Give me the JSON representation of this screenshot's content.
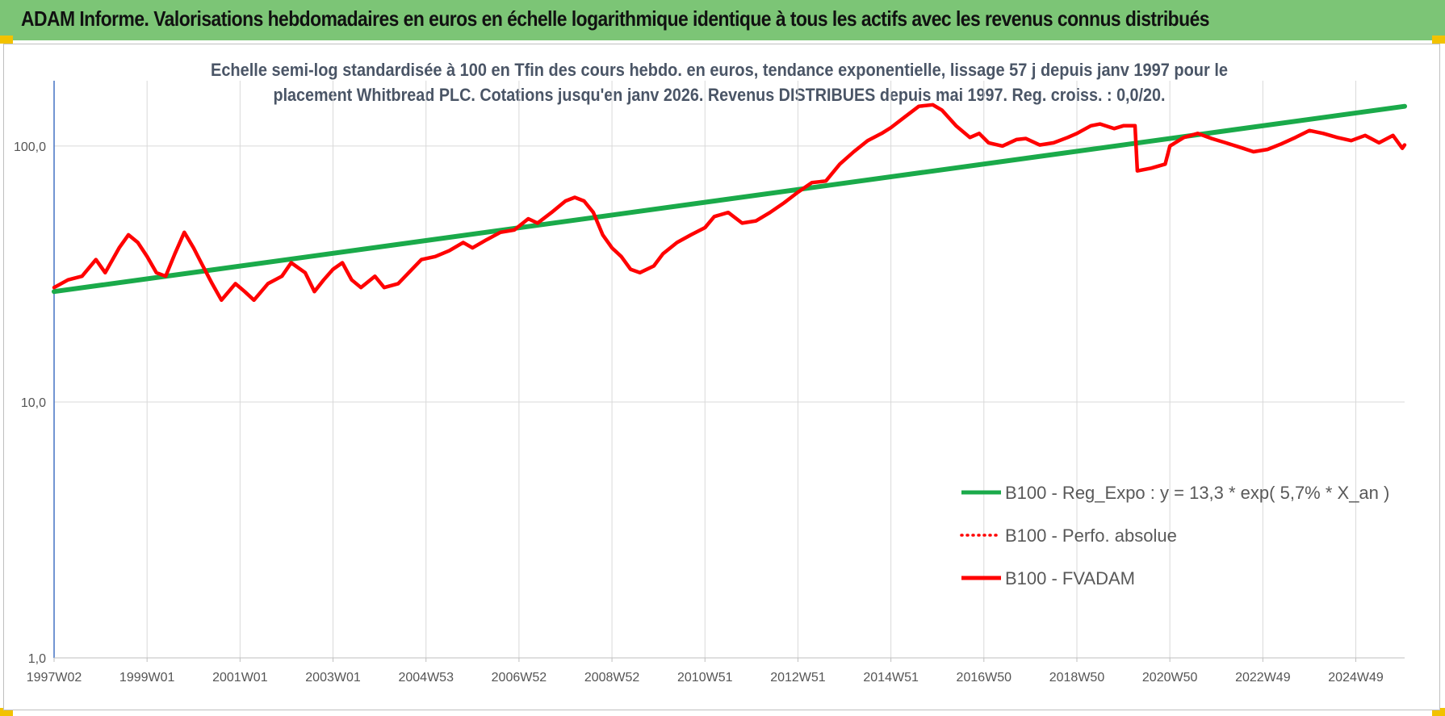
{
  "header": {
    "title": "ADAM Informe. Valorisations hebdomadaires en euros en échelle logarithmique identique à tous les actifs avec les revenus connus distribués"
  },
  "colors": {
    "header_bg": "#7cc576",
    "corner_accent": "#f2c200",
    "regression": "#1aaa4a",
    "fvadam": "#ff0000",
    "perfo": "#ff0000"
  },
  "chart_data": {
    "type": "line",
    "subtitle": [
      "Echelle semi-log standardisée à 100 en Tfin des cours hebdo. en euros, tendance exponentielle, lissage 57 j depuis janv 1997 pour le",
      "placement Whitbread PLC. Cotations jusqu'en janv 2026. Revenus DISTRIBUES depuis mai 1997. Reg. croiss. : 0,0/20."
    ],
    "y_scale": "log",
    "ylim": [
      1,
      180
    ],
    "y_ticks": [
      {
        "value": 1,
        "label": "1,0"
      },
      {
        "value": 10,
        "label": "10,0"
      },
      {
        "value": 100,
        "label": "100,0"
      }
    ],
    "xlim": [
      1997.0,
      2026.05
    ],
    "x_ticks": [
      {
        "value": 1997.0,
        "label": "1997W02"
      },
      {
        "value": 1999.0,
        "label": "1999W01"
      },
      {
        "value": 2001.0,
        "label": "2001W01"
      },
      {
        "value": 2003.0,
        "label": "2003W01"
      },
      {
        "value": 2005.0,
        "label": "2004W53"
      },
      {
        "value": 2007.0,
        "label": "2006W52"
      },
      {
        "value": 2009.0,
        "label": "2008W52"
      },
      {
        "value": 2011.0,
        "label": "2010W51"
      },
      {
        "value": 2013.0,
        "label": "2012W51"
      },
      {
        "value": 2015.0,
        "label": "2014W51"
      },
      {
        "value": 2017.0,
        "label": "2016W50"
      },
      {
        "value": 2019.0,
        "label": "2018W50"
      },
      {
        "value": 2021.0,
        "label": "2020W50"
      },
      {
        "value": 2023.0,
        "label": "2022W49"
      },
      {
        "value": 2025.0,
        "label": "2024W49"
      }
    ],
    "grid": true,
    "legend_position": "bottom-right",
    "series": [
      {
        "name": "B100 - Reg_Expo : y = 13,3 * exp( 5,7% *  X_an )",
        "style": "solid",
        "points": [
          [
            1997.0,
            27.0
          ],
          [
            2026.05,
            143.0
          ]
        ]
      },
      {
        "name": "B100 - Perfo. absolue",
        "style": "dotted",
        "points": []
      },
      {
        "name": "B100 - FVADAM",
        "style": "solid",
        "points": [
          [
            1997.0,
            28
          ],
          [
            1997.3,
            30
          ],
          [
            1997.6,
            31
          ],
          [
            1997.9,
            36
          ],
          [
            1998.1,
            32
          ],
          [
            1998.4,
            40
          ],
          [
            1998.6,
            45
          ],
          [
            1998.8,
            42
          ],
          [
            1999.0,
            37
          ],
          [
            1999.2,
            32
          ],
          [
            1999.4,
            31
          ],
          [
            1999.6,
            38
          ],
          [
            1999.8,
            46
          ],
          [
            2000.0,
            40
          ],
          [
            2000.2,
            34
          ],
          [
            2000.4,
            29
          ],
          [
            2000.6,
            25
          ],
          [
            2000.9,
            29
          ],
          [
            2001.1,
            27
          ],
          [
            2001.3,
            25
          ],
          [
            2001.6,
            29
          ],
          [
            2001.9,
            31
          ],
          [
            2002.1,
            35
          ],
          [
            2002.4,
            32
          ],
          [
            2002.6,
            27
          ],
          [
            2002.8,
            30
          ],
          [
            2003.0,
            33
          ],
          [
            2003.2,
            35
          ],
          [
            2003.4,
            30
          ],
          [
            2003.6,
            28
          ],
          [
            2003.9,
            31
          ],
          [
            2004.1,
            28
          ],
          [
            2004.4,
            29
          ],
          [
            2004.7,
            33
          ],
          [
            2004.9,
            36
          ],
          [
            2005.2,
            37
          ],
          [
            2005.5,
            39
          ],
          [
            2005.8,
            42
          ],
          [
            2006.0,
            40
          ],
          [
            2006.3,
            43
          ],
          [
            2006.6,
            46
          ],
          [
            2006.9,
            47
          ],
          [
            2007.2,
            52
          ],
          [
            2007.4,
            50
          ],
          [
            2007.7,
            55
          ],
          [
            2008.0,
            61
          ],
          [
            2008.2,
            63
          ],
          [
            2008.4,
            61
          ],
          [
            2008.6,
            55
          ],
          [
            2008.8,
            45
          ],
          [
            2009.0,
            40
          ],
          [
            2009.2,
            37
          ],
          [
            2009.4,
            33
          ],
          [
            2009.6,
            32
          ],
          [
            2009.9,
            34
          ],
          [
            2010.1,
            38
          ],
          [
            2010.4,
            42
          ],
          [
            2010.7,
            45
          ],
          [
            2011.0,
            48
          ],
          [
            2011.2,
            53
          ],
          [
            2011.5,
            55
          ],
          [
            2011.8,
            50
          ],
          [
            2012.1,
            51
          ],
          [
            2012.4,
            55
          ],
          [
            2012.7,
            60
          ],
          [
            2013.0,
            66
          ],
          [
            2013.3,
            72
          ],
          [
            2013.6,
            73
          ],
          [
            2013.9,
            85
          ],
          [
            2014.2,
            95
          ],
          [
            2014.5,
            105
          ],
          [
            2014.8,
            112
          ],
          [
            2015.0,
            118
          ],
          [
            2015.3,
            130
          ],
          [
            2015.6,
            143
          ],
          [
            2015.9,
            145
          ],
          [
            2016.1,
            138
          ],
          [
            2016.4,
            120
          ],
          [
            2016.7,
            108
          ],
          [
            2016.9,
            112
          ],
          [
            2017.1,
            103
          ],
          [
            2017.4,
            100
          ],
          [
            2017.7,
            106
          ],
          [
            2017.9,
            107
          ],
          [
            2018.2,
            101
          ],
          [
            2018.5,
            103
          ],
          [
            2018.8,
            108
          ],
          [
            2019.0,
            112
          ],
          [
            2019.3,
            120
          ],
          [
            2019.5,
            122
          ],
          [
            2019.8,
            117
          ],
          [
            2020.0,
            120
          ],
          [
            2020.25,
            120
          ],
          [
            2020.3,
            80
          ],
          [
            2020.6,
            82
          ],
          [
            2020.9,
            85
          ],
          [
            2021.0,
            100
          ],
          [
            2021.3,
            108
          ],
          [
            2021.6,
            112
          ],
          [
            2021.9,
            107
          ],
          [
            2022.2,
            103
          ],
          [
            2022.5,
            99
          ],
          [
            2022.8,
            95
          ],
          [
            2023.1,
            97
          ],
          [
            2023.4,
            102
          ],
          [
            2023.7,
            108
          ],
          [
            2024.0,
            115
          ],
          [
            2024.3,
            112
          ],
          [
            2024.6,
            108
          ],
          [
            2024.9,
            105
          ],
          [
            2025.2,
            110
          ],
          [
            2025.5,
            103
          ],
          [
            2025.8,
            110
          ],
          [
            2026.0,
            98
          ],
          [
            2026.05,
            101
          ]
        ]
      }
    ]
  }
}
